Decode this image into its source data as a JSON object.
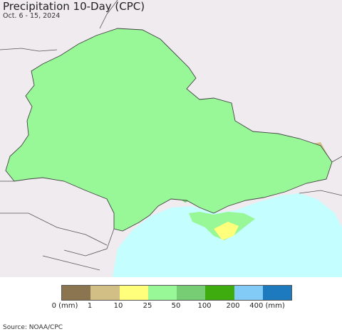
{
  "header": {
    "title": "Precipitation 10-Day (CPC)",
    "subtitle": "Oct. 6 - 15, 2024"
  },
  "legend": {
    "colors": [
      "#8b7550",
      "#d2bf86",
      "#ffff7c",
      "#98f797",
      "#76cd73",
      "#3eab0e",
      "#82cbf6",
      "#1e7abf"
    ],
    "labels": [
      "0 (mm)",
      "1",
      "10",
      "25",
      "50",
      "100",
      "200",
      "400 (mm)"
    ]
  },
  "map": {
    "sea_color": "#c5fefe",
    "land_outside_color": "#efebef",
    "border_color": "#555555"
  },
  "source": "Source: NOAA/CPC"
}
